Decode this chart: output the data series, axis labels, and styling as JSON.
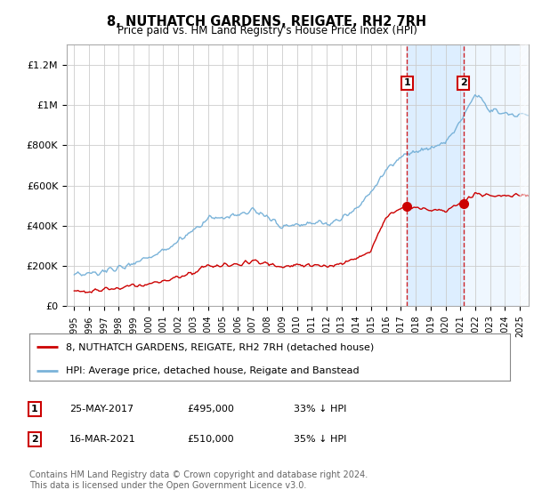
{
  "title": "8, NUTHATCH GARDENS, REIGATE, RH2 7RH",
  "subtitle": "Price paid vs. HM Land Registry's House Price Index (HPI)",
  "ylim": [
    0,
    1300000
  ],
  "yticks": [
    0,
    200000,
    400000,
    600000,
    800000,
    1000000,
    1200000
  ],
  "ytick_labels": [
    "£0",
    "£200K",
    "£400K",
    "£600K",
    "£800K",
    "£1M",
    "£1.2M"
  ],
  "x_start_year": 1995,
  "x_end_year": 2025,
  "hpi_color": "#7ab3d9",
  "price_color": "#cc0000",
  "transaction1_year": 2017.4,
  "transaction1_price": 495000,
  "transaction2_year": 2021.2,
  "transaction2_price": 510000,
  "legend1_label": "8, NUTHATCH GARDENS, REIGATE, RH2 7RH (detached house)",
  "legend2_label": "HPI: Average price, detached house, Reigate and Banstead",
  "table_row1": [
    "1",
    "25-MAY-2017",
    "£495,000",
    "33% ↓ HPI"
  ],
  "table_row2": [
    "2",
    "16-MAR-2021",
    "£510,000",
    "35% ↓ HPI"
  ],
  "footnote": "Contains HM Land Registry data © Crown copyright and database right 2024.\nThis data is licensed under the Open Government Licence v3.0.",
  "background_color": "#ffffff",
  "plot_bg_color": "#ffffff",
  "grid_color": "#cccccc",
  "highlight_bg_color": "#ddeeff"
}
